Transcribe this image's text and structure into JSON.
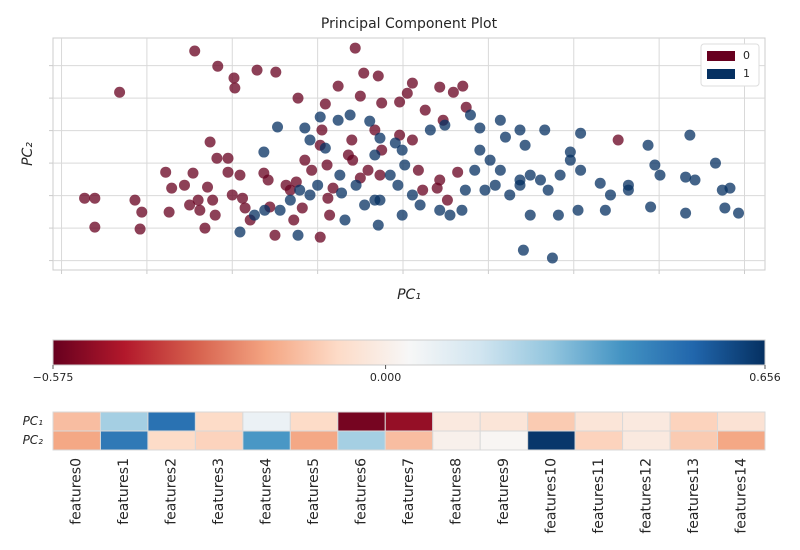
{
  "chart_data": [
    {
      "type": "scatter",
      "title": "Principal Component Plot",
      "x_label": "PC₁",
      "y_label": "PC₂",
      "xlim": [
        -4.1,
        4.24
      ],
      "ylim": [
        -3.29,
        3.85
      ],
      "xticks": [
        -4,
        -3,
        -2,
        -1,
        0,
        1,
        2,
        3,
        4
      ],
      "yticks": [
        -3,
        -2,
        -1,
        0,
        1,
        2,
        3
      ],
      "grid": true,
      "legend": "upper right",
      "series": [
        {
          "name": "0",
          "color": "#67001f",
          "x": [
            -3.32,
            -2.44,
            -2.17,
            -1.98,
            -1.97,
            -1.71,
            -1.49,
            -1.23,
            -0.91,
            -0.56,
            -0.76,
            -0.5,
            -0.46,
            -0.29,
            -0.25,
            -0.04,
            0.05,
            0.11,
            0.26,
            0.43,
            0.59,
            0.7,
            0.74,
            0.47,
            -2.26,
            -2.18,
            -2.78,
            -2.71,
            -2.56,
            -2.46,
            -2.29,
            -2.4,
            -2.5,
            -2.38,
            -2.23,
            -2.05,
            -1.91,
            -2.0,
            -1.88,
            -1.85,
            -2.2,
            -2.32,
            -1.79,
            -3.73,
            -3.61,
            -3.61,
            -3.14,
            -3.06,
            -3.08,
            -2.74,
            -2.05,
            -1.63,
            -1.58,
            -1.37,
            -1.32,
            -1.25,
            -1.15,
            -1.07,
            -0.97,
            -0.95,
            -0.89,
            -0.82,
            -1.18,
            -1.5,
            -0.97,
            -0.86,
            -0.64,
            -0.6,
            -0.59,
            -0.5,
            -0.41,
            -0.33,
            -0.25,
            -0.27,
            -0.04,
            0.11,
            0.18,
            0.23,
            0.4,
            0.43,
            0.64,
            0.52,
            2.52,
            -1.28,
            -1.56,
            -0.88
          ],
          "y": [
            2.18,
            3.45,
            2.98,
            2.62,
            2.31,
            2.86,
            2.8,
            2.0,
            1.82,
            3.54,
            2.37,
            2.06,
            2.77,
            2.68,
            1.85,
            1.88,
            2.15,
            2.46,
            1.63,
            2.34,
            2.18,
            2.37,
            1.72,
            1.32,
            0.65,
            0.15,
            -0.28,
            -0.77,
            -0.68,
            -0.31,
            -0.74,
            -1.14,
            -1.29,
            -1.45,
            -1.14,
            -0.28,
            -0.37,
            -0.98,
            -1.08,
            -1.38,
            -1.6,
            -2.0,
            -1.75,
            -1.08,
            -1.08,
            -1.97,
            -1.14,
            -1.51,
            -2.03,
            -1.51,
            0.15,
            -0.31,
            -0.52,
            -0.68,
            -0.83,
            -0.58,
            0.09,
            -0.22,
            0.55,
            1.02,
            -0.06,
            -0.77,
            -1.38,
            -2.22,
            -2.28,
            -1.6,
            0.25,
            0.71,
            0.09,
            -0.46,
            -0.22,
            1.02,
            0.4,
            -0.37,
            0.86,
            0.71,
            -0.22,
            -0.83,
            -0.77,
            -0.52,
            -0.28,
            -1.14,
            0.71,
            -1.75,
            -1.35,
            -1.08
          ]
        },
        {
          "name": "1",
          "color": "#053061",
          "x": [
            -1.47,
            -1.63,
            -1.15,
            -0.97,
            -0.76,
            -1.09,
            -0.91,
            -0.74,
            -0.62,
            -0.39,
            -0.27,
            -0.09,
            -0.01,
            -0.33,
            -0.55,
            -0.72,
            -1.0,
            -1.21,
            -1.09,
            -1.32,
            -1.44,
            -1.62,
            -1.74,
            -1.91,
            -1.23,
            -0.68,
            -0.45,
            -0.29,
            -0.27,
            -0.06,
            -0.01,
            0.11,
            0.2,
            0.43,
            0.55,
            0.32,
            0.49,
            0.79,
            0.9,
            1.14,
            1.2,
            1.37,
            1.43,
            1.66,
            2.08,
            1.96,
            1.96,
            1.84,
            1.7,
            1.49,
            1.37,
            1.25,
            1.08,
            0.9,
            0.84,
            0.73,
            0.69,
            1.02,
            1.14,
            1.49,
            1.82,
            2.05,
            2.31,
            2.43,
            2.37,
            2.64,
            2.87,
            2.95,
            3.01,
            2.9,
            3.36,
            3.31,
            3.42,
            3.66,
            3.74,
            3.83,
            3.77,
            3.93,
            3.31,
            2.08,
            1.75,
            1.41,
            2.64,
            0.02,
            1.37,
            1.61,
            0.96,
            -0.33,
            -0.15
          ],
          "y": [
            1.11,
            0.34,
            1.08,
            1.42,
            1.32,
            0.71,
            0.46,
            -0.37,
            1.48,
            1.29,
            0.77,
            0.62,
            0.4,
            0.25,
            -0.68,
            -0.92,
            -0.68,
            -0.83,
            -0.98,
            -1.14,
            -1.45,
            -1.45,
            -1.6,
            -2.12,
            -2.22,
            -1.75,
            -1.29,
            -1.91,
            -1.14,
            -0.68,
            -1.6,
            -0.98,
            -1.29,
            -1.45,
            -1.6,
            1.02,
            1.17,
            1.48,
            1.08,
            1.32,
            0.8,
            1.02,
            0.55,
            1.02,
            0.92,
            0.34,
            0.09,
            -0.37,
            -0.83,
            -0.37,
            -0.68,
            -0.98,
            -0.68,
            0.4,
            -0.22,
            -0.83,
            -1.45,
            0.09,
            -0.22,
            -1.6,
            -1.6,
            -1.45,
            -0.62,
            -0.98,
            -1.45,
            -0.68,
            0.55,
            -0.06,
            -0.37,
            -1.35,
            0.86,
            -0.43,
            -0.52,
            0.0,
            -0.83,
            -0.77,
            -1.38,
            -1.54,
            -1.54,
            -0.22,
            -2.92,
            -2.68,
            -0.83,
            -0.06,
            -0.52,
            -0.52,
            -0.83,
            -1.14,
            -0.37
          ]
        }
      ]
    },
    {
      "type": "heatmap",
      "rows": [
        "PC₁",
        "PC₂"
      ],
      "columns": [
        "features0",
        "features1",
        "features2",
        "features3",
        "features4",
        "features5",
        "features6",
        "features7",
        "features8",
        "features9",
        "features10",
        "features11",
        "features12",
        "features13",
        "features14"
      ],
      "values": [
        [
          -0.15,
          0.25,
          0.5,
          -0.08,
          0.08,
          -0.08,
          -0.55,
          -0.5,
          -0.02,
          -0.04,
          -0.12,
          -0.04,
          -0.02,
          -0.1,
          -0.05
        ],
        [
          -0.2,
          0.48,
          -0.08,
          -0.1,
          0.4,
          -0.2,
          0.25,
          -0.15,
          0.01,
          0.03,
          0.64,
          -0.1,
          -0.02,
          -0.12,
          -0.2
        ]
      ],
      "clim": [
        -0.575,
        0.656
      ],
      "colorbar_ticks": [
        {
          "value": -0.575,
          "label": "−0.575"
        },
        {
          "value": 0,
          "label": "0.000"
        },
        {
          "value": 0.656,
          "label": "0.656"
        }
      ],
      "colormap": [
        "#67001f",
        "#b2182b",
        "#d6604d",
        "#f4a582",
        "#fddbc7",
        "#f7f7f7",
        "#d1e5f0",
        "#92c5de",
        "#4393c3",
        "#2166ac",
        "#053061"
      ]
    }
  ]
}
